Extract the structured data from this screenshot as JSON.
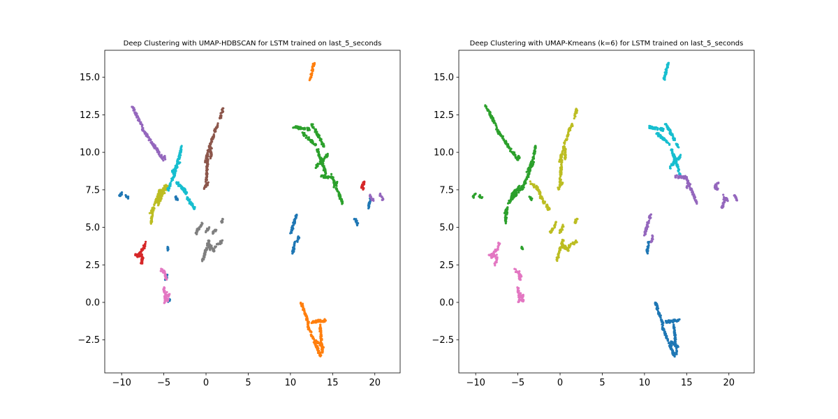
{
  "chart_data": [
    {
      "type": "scatter",
      "title": "Deep Clustering with UMAP-HDBSCAN for LSTM trained on last_5_seconds",
      "xlabel": "",
      "ylabel": "",
      "xlim": [
        -12,
        23
      ],
      "ylim": [
        -4.7,
        16.8
      ],
      "xticks": [
        -10,
        -5,
        0,
        5,
        10,
        15,
        20
      ],
      "xtick_labels": [
        "−10",
        "−5",
        "0",
        "5",
        "10",
        "15",
        "20"
      ],
      "yticks": [
        -2.5,
        0.0,
        2.5,
        5.0,
        7.5,
        10.0,
        12.5,
        15.0
      ],
      "ytick_labels": [
        "−2.5",
        "0.0",
        "2.5",
        "5.0",
        "7.5",
        "10.0",
        "12.5",
        "15.0"
      ],
      "grid": false,
      "legend": "none",
      "clusters": [
        {
          "color": "#1f77b4",
          "segments": [
            [
              -10.3,
              7.0,
              -10.0,
              7.3
            ],
            [
              -9.6,
              7.1,
              -9.2,
              7.0
            ],
            [
              -4.5,
              3.5,
              -4.5,
              3.7
            ],
            [
              -4.6,
              0.1,
              -4.3,
              0.2
            ],
            [
              -4.8,
              1.5,
              -4.6,
              1.8
            ],
            [
              -3.6,
              7.0,
              -3.3,
              6.8
            ],
            [
              10.0,
              4.5,
              10.7,
              5.8
            ],
            [
              10.3,
              3.3,
              10.5,
              4.0
            ],
            [
              10.8,
              4.0,
              11.0,
              4.4
            ],
            [
              19.2,
              6.3,
              19.5,
              6.9
            ],
            [
              17.6,
              5.6,
              18.0,
              5.2
            ]
          ]
        },
        {
          "color": "#ff7f0e",
          "segments": [
            [
              12.3,
              14.8,
              12.8,
              15.9
            ],
            [
              11.3,
              0.0,
              12.2,
              -1.5
            ],
            [
              12.0,
              -1.5,
              13.6,
              -3.6
            ],
            [
              12.5,
              -1.3,
              14.2,
              -1.2
            ],
            [
              13.0,
              -2.6,
              14.0,
              -3.0
            ],
            [
              13.5,
              -1.5,
              13.8,
              -3.4
            ]
          ]
        },
        {
          "color": "#2ca02c",
          "segments": [
            [
              10.4,
              11.7,
              12.4,
              11.5
            ],
            [
              11.4,
              11.3,
              13.0,
              10.5
            ],
            [
              12.5,
              11.9,
              14.0,
              10.4
            ],
            [
              13.0,
              9.0,
              14.5,
              9.9
            ],
            [
              13.2,
              10.2,
              14.3,
              8.4
            ],
            [
              13.6,
              8.4,
              14.8,
              8.3
            ],
            [
              14.8,
              8.5,
              16.2,
              6.6
            ],
            [
              15.0,
              7.7,
              15.5,
              8.0
            ]
          ]
        },
        {
          "color": "#d62728",
          "segments": [
            [
              -8.5,
              3.2,
              -7.5,
              3.1
            ],
            [
              -8.2,
              3.0,
              -7.5,
              3.6
            ],
            [
              -7.7,
              2.5,
              -7.5,
              3.0
            ],
            [
              -7.4,
              3.6,
              -7.2,
              4.0
            ],
            [
              18.3,
              7.6,
              18.7,
              8.0
            ],
            [
              18.4,
              7.8,
              18.7,
              7.5
            ]
          ]
        },
        {
          "color": "#9467bd",
          "segments": [
            [
              -8.8,
              13.1,
              -7.5,
              11.7
            ],
            [
              -7.6,
              11.6,
              -5.0,
              9.5
            ],
            [
              -5.0,
              9.7,
              -4.8,
              9.6
            ],
            [
              19.4,
              7.1,
              19.8,
              6.8
            ],
            [
              20.6,
              7.2,
              21.0,
              6.8
            ]
          ]
        },
        {
          "color": "#8c564b",
          "segments": [
            [
              -0.2,
              7.6,
              0.3,
              8.0
            ],
            [
              0.0,
              8.0,
              0.2,
              9.5
            ],
            [
              -0.1,
              9.3,
              0.5,
              10.5
            ],
            [
              0.6,
              9.6,
              0.6,
              10.3
            ],
            [
              0.5,
              10.6,
              1.0,
              11.2
            ],
            [
              1.0,
              11.4,
              1.5,
              11.9
            ],
            [
              1.7,
              12.3,
              2.0,
              12.9
            ]
          ]
        },
        {
          "color": "#e377c2",
          "segments": [
            [
              -5.4,
              2.2,
              -4.9,
              2.0
            ],
            [
              -4.9,
              2.0,
              -4.7,
              1.5
            ],
            [
              -5.0,
              1.0,
              -4.8,
              0.3
            ],
            [
              -4.9,
              0.0,
              -4.6,
              0.6
            ],
            [
              -4.6,
              0.1,
              -4.4,
              0.5
            ]
          ]
        },
        {
          "color": "#7f7f7f",
          "segments": [
            [
              -1.2,
              4.6,
              -0.8,
              5.0
            ],
            [
              -0.7,
              5.0,
              -0.5,
              5.3
            ],
            [
              0.0,
              4.7,
              0.4,
              5.1
            ],
            [
              -0.4,
              2.8,
              0.4,
              4.2
            ],
            [
              0.2,
              4.0,
              0.5,
              3.5
            ],
            [
              0.5,
              3.8,
              1.0,
              3.4
            ],
            [
              1.0,
              3.7,
              2.0,
              4.1
            ],
            [
              0.8,
              4.6,
              1.2,
              4.8
            ],
            [
              1.8,
              5.3,
              2.0,
              5.6
            ]
          ]
        },
        {
          "color": "#bcbd22",
          "segments": [
            [
              -6.5,
              5.3,
              -6.3,
              6.2
            ],
            [
              -6.6,
              5.9,
              -6.1,
              6.4
            ],
            [
              -6.1,
              6.5,
              -5.4,
              7.5
            ],
            [
              -5.8,
              6.8,
              -4.8,
              7.8
            ],
            [
              -5.5,
              7.0,
              -4.5,
              7.7
            ],
            [
              -5.7,
              6.5,
              -5.3,
              7.0
            ]
          ]
        },
        {
          "color": "#17becf",
          "segments": [
            [
              -4.5,
              7.5,
              -3.8,
              8.5
            ],
            [
              -3.8,
              8.4,
              -3.3,
              9.5
            ],
            [
              -4.0,
              8.7,
              -3.1,
              9.3
            ],
            [
              -3.2,
              9.6,
              -2.9,
              10.4
            ],
            [
              -3.5,
              8.0,
              -2.6,
              7.5
            ],
            [
              -2.8,
              7.7,
              -2.3,
              7.2
            ],
            [
              -2.3,
              7.0,
              -1.3,
              6.2
            ]
          ]
        }
      ]
    },
    {
      "type": "scatter",
      "title": "Deep Clustering with UMAP-Kmeans (k=6) for LSTM trained on last_5_seconds",
      "xlabel": "",
      "ylabel": "",
      "xlim": [
        -12,
        23
      ],
      "ylim": [
        -4.7,
        16.8
      ],
      "xticks": [
        -10,
        -5,
        0,
        5,
        10,
        15,
        20
      ],
      "xtick_labels": [
        "−10",
        "−5",
        "0",
        "5",
        "10",
        "15",
        "20"
      ],
      "yticks": [
        -2.5,
        0.0,
        2.5,
        5.0,
        7.5,
        10.0,
        12.5,
        15.0
      ],
      "ytick_labels": [
        "−2.5",
        "0.0",
        "2.5",
        "5.0",
        "7.5",
        "10.0",
        "12.5",
        "15.0"
      ],
      "grid": false,
      "legend": "none",
      "clusters": [
        {
          "color": "#1f77b4",
          "segments": [
            [
              11.3,
              0.0,
              12.2,
              -1.5
            ],
            [
              12.0,
              -1.5,
              13.6,
              -3.6
            ],
            [
              12.5,
              -1.3,
              14.2,
              -1.2
            ],
            [
              13.0,
              -2.6,
              14.0,
              -3.0
            ],
            [
              13.5,
              -1.5,
              13.8,
              -3.4
            ],
            [
              10.3,
              3.3,
              10.5,
              4.0
            ]
          ]
        },
        {
          "color": "#2ca02c",
          "segments": [
            [
              -10.3,
              7.0,
              -10.0,
              7.3
            ],
            [
              -9.6,
              7.1,
              -9.2,
              7.0
            ],
            [
              -8.8,
              13.1,
              -7.5,
              11.7
            ],
            [
              -7.6,
              11.6,
              -5.0,
              9.5
            ],
            [
              -5.0,
              9.7,
              -4.8,
              9.6
            ],
            [
              -6.5,
              5.3,
              -6.3,
              6.2
            ],
            [
              -6.6,
              5.9,
              -6.1,
              6.4
            ],
            [
              -6.1,
              6.5,
              -5.4,
              7.5
            ],
            [
              -5.8,
              6.8,
              -4.8,
              7.8
            ],
            [
              -5.5,
              7.0,
              -4.5,
              7.7
            ],
            [
              -4.5,
              7.5,
              -3.8,
              8.5
            ],
            [
              -3.8,
              8.4,
              -3.3,
              9.5
            ],
            [
              -4.0,
              8.7,
              -3.1,
              9.3
            ],
            [
              -3.2,
              9.6,
              -2.9,
              10.4
            ],
            [
              -3.6,
              7.0,
              -3.3,
              6.8
            ],
            [
              -4.5,
              3.5,
              -4.5,
              3.7
            ]
          ]
        },
        {
          "color": "#bcbd22",
          "segments": [
            [
              -2.8,
              7.7,
              -2.3,
              7.2
            ],
            [
              -2.3,
              7.0,
              -1.3,
              6.2
            ],
            [
              -3.5,
              8.0,
              -2.6,
              7.5
            ],
            [
              -0.2,
              7.6,
              0.3,
              8.0
            ],
            [
              0.0,
              8.0,
              0.2,
              9.5
            ],
            [
              -0.1,
              9.3,
              0.5,
              10.5
            ],
            [
              0.6,
              9.6,
              0.6,
              10.3
            ],
            [
              0.5,
              10.6,
              1.0,
              11.2
            ],
            [
              1.0,
              11.4,
              1.5,
              11.9
            ],
            [
              1.7,
              12.3,
              2.0,
              12.9
            ],
            [
              -1.2,
              4.6,
              -0.8,
              5.0
            ],
            [
              -0.7,
              5.0,
              -0.5,
              5.3
            ],
            [
              0.0,
              4.7,
              0.4,
              5.1
            ],
            [
              -0.4,
              2.8,
              0.4,
              4.2
            ],
            [
              0.2,
              4.0,
              0.5,
              3.5
            ],
            [
              0.5,
              3.8,
              1.0,
              3.4
            ],
            [
              1.0,
              3.7,
              2.0,
              4.1
            ],
            [
              1.8,
              5.3,
              2.0,
              5.6
            ]
          ]
        },
        {
          "color": "#17becf",
          "segments": [
            [
              12.3,
              14.8,
              12.8,
              15.9
            ],
            [
              10.4,
              11.7,
              12.4,
              11.5
            ],
            [
              11.4,
              11.3,
              13.0,
              10.5
            ],
            [
              12.5,
              11.9,
              14.0,
              10.4
            ],
            [
              13.0,
              9.0,
              14.5,
              9.9
            ],
            [
              13.2,
              10.2,
              14.3,
              8.4
            ]
          ]
        },
        {
          "color": "#9467bd",
          "segments": [
            [
              13.6,
              8.4,
              14.8,
              8.3
            ],
            [
              14.8,
              8.5,
              16.2,
              6.6
            ],
            [
              15.0,
              7.7,
              15.5,
              8.0
            ],
            [
              10.0,
              4.5,
              10.7,
              5.8
            ],
            [
              10.8,
              4.0,
              11.0,
              4.4
            ],
            [
              18.3,
              7.6,
              18.7,
              8.0
            ],
            [
              18.4,
              7.8,
              18.7,
              7.5
            ],
            [
              19.2,
              6.3,
              19.5,
              6.9
            ],
            [
              19.4,
              7.1,
              19.8,
              6.8
            ],
            [
              20.6,
              7.2,
              21.0,
              6.8
            ]
          ]
        },
        {
          "color": "#e377c2",
          "segments": [
            [
              -8.5,
              3.2,
              -7.5,
              3.1
            ],
            [
              -8.2,
              3.0,
              -7.5,
              3.6
            ],
            [
              -7.7,
              2.5,
              -7.5,
              3.0
            ],
            [
              -7.4,
              3.6,
              -7.2,
              4.0
            ],
            [
              -5.4,
              2.2,
              -4.9,
              2.0
            ],
            [
              -4.9,
              2.0,
              -4.7,
              1.5
            ],
            [
              -5.0,
              1.0,
              -4.8,
              0.3
            ],
            [
              -4.9,
              0.0,
              -4.6,
              0.6
            ],
            [
              -4.6,
              0.1,
              -4.4,
              0.5
            ],
            [
              -4.8,
              1.5,
              -4.6,
              1.8
            ],
            [
              -4.6,
              0.1,
              -4.3,
              0.2
            ]
          ]
        }
      ]
    }
  ]
}
